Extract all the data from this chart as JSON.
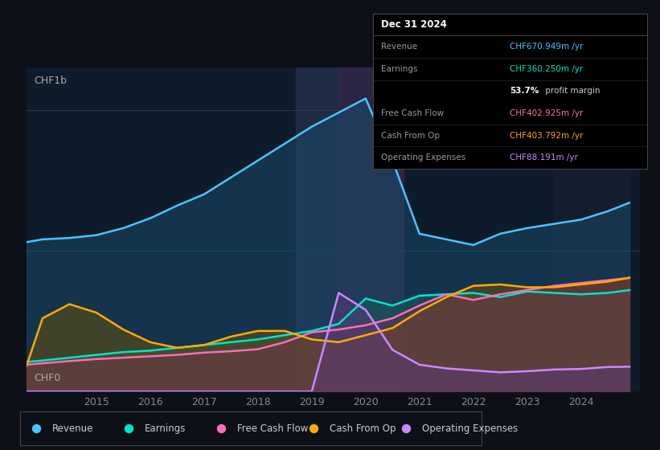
{
  "bg_color": "#0d1117",
  "plot_bg_color": "#0d1b2a",
  "title_label": "CHF1b",
  "zero_label": "CHF0",
  "legend": [
    {
      "label": "Revenue",
      "color": "#4dc3ff"
    },
    {
      "label": "Earnings",
      "color": "#00e5cc"
    },
    {
      "label": "Free Cash Flow",
      "color": "#ff6eb4"
    },
    {
      "label": "Cash From Op",
      "color": "#ffaa00"
    },
    {
      "label": "Operating Expenses",
      "color": "#cc88ff"
    }
  ],
  "years": [
    2013.7,
    2014.0,
    2014.5,
    2015.0,
    2015.5,
    2016.0,
    2016.5,
    2017.0,
    2017.5,
    2018.0,
    2018.5,
    2019.0,
    2019.5,
    2020.0,
    2020.5,
    2021.0,
    2021.5,
    2022.0,
    2022.5,
    2023.0,
    2023.5,
    2024.0,
    2024.5,
    2024.9
  ],
  "revenue": [
    0.53,
    0.54,
    0.545,
    0.555,
    0.58,
    0.615,
    0.66,
    0.7,
    0.76,
    0.82,
    0.88,
    0.94,
    0.99,
    1.04,
    0.82,
    0.56,
    0.54,
    0.52,
    0.56,
    0.58,
    0.595,
    0.61,
    0.64,
    0.67
  ],
  "earnings": [
    0.105,
    0.11,
    0.12,
    0.13,
    0.14,
    0.145,
    0.155,
    0.165,
    0.175,
    0.185,
    0.2,
    0.215,
    0.24,
    0.33,
    0.305,
    0.34,
    0.345,
    0.35,
    0.335,
    0.355,
    0.35,
    0.345,
    0.35,
    0.36
  ],
  "free_cash_flow": [
    0.095,
    0.1,
    0.108,
    0.115,
    0.12,
    0.125,
    0.13,
    0.138,
    0.143,
    0.15,
    0.175,
    0.21,
    0.22,
    0.235,
    0.26,
    0.305,
    0.345,
    0.325,
    0.345,
    0.36,
    0.375,
    0.385,
    0.395,
    0.403
  ],
  "cash_from_op": [
    0.09,
    0.26,
    0.31,
    0.28,
    0.22,
    0.175,
    0.155,
    0.165,
    0.195,
    0.215,
    0.215,
    0.185,
    0.175,
    0.2,
    0.225,
    0.285,
    0.335,
    0.375,
    0.38,
    0.37,
    0.37,
    0.38,
    0.39,
    0.404
  ],
  "op_expenses": [
    0.0,
    0.0,
    0.0,
    0.0,
    0.0,
    0.0,
    0.0,
    0.0,
    0.0,
    0.0,
    0.0,
    0.0,
    0.35,
    0.29,
    0.148,
    0.095,
    0.082,
    0.075,
    0.068,
    0.072,
    0.078,
    0.08,
    0.087,
    0.088
  ],
  "fill_colors": {
    "revenue": "#1a4a6a",
    "earnings": "#1a5a5a",
    "free_cash_flow": "#8b2252",
    "cash_from_op": "#7a5500",
    "op_expenses": "#5a3a7a"
  },
  "shaded_regions": [
    {
      "xmin": 2018.7,
      "xmax": 2019.5,
      "color": "#22304a",
      "alpha": 0.8
    },
    {
      "xmin": 2019.5,
      "xmax": 2020.7,
      "color": "#3a2a50",
      "alpha": 0.7
    },
    {
      "xmin": 2023.5,
      "xmax": 2024.9,
      "color": "#1a2030",
      "alpha": 0.6
    }
  ],
  "grid_lines": [
    0.5,
    1.0
  ],
  "ylim": [
    0.0,
    1.15
  ],
  "xlim": [
    2013.7,
    2025.1
  ],
  "xticks": [
    2015,
    2016,
    2017,
    2018,
    2019,
    2020,
    2021,
    2022,
    2023,
    2024
  ],
  "tooltip": {
    "title": "Dec 31 2024",
    "rows": [
      {
        "label": "Revenue",
        "value": "CHF670.949m /yr",
        "color": "#4dc3ff",
        "bold_prefix": null
      },
      {
        "label": "Earnings",
        "value": "CHF360.250m /yr",
        "color": "#00e5cc",
        "bold_prefix": null
      },
      {
        "label": "",
        "value": " profit margin",
        "color": "#cccccc",
        "bold_prefix": "53.7%"
      },
      {
        "label": "Free Cash Flow",
        "value": "CHF402.925m /yr",
        "color": "#ff6eb4",
        "bold_prefix": null
      },
      {
        "label": "Cash From Op",
        "value": "CHF403.792m /yr",
        "color": "#ffaa00",
        "bold_prefix": null
      },
      {
        "label": "Operating Expenses",
        "value": "CHF88.191m /yr",
        "color": "#cc88ff",
        "bold_prefix": null
      }
    ]
  }
}
